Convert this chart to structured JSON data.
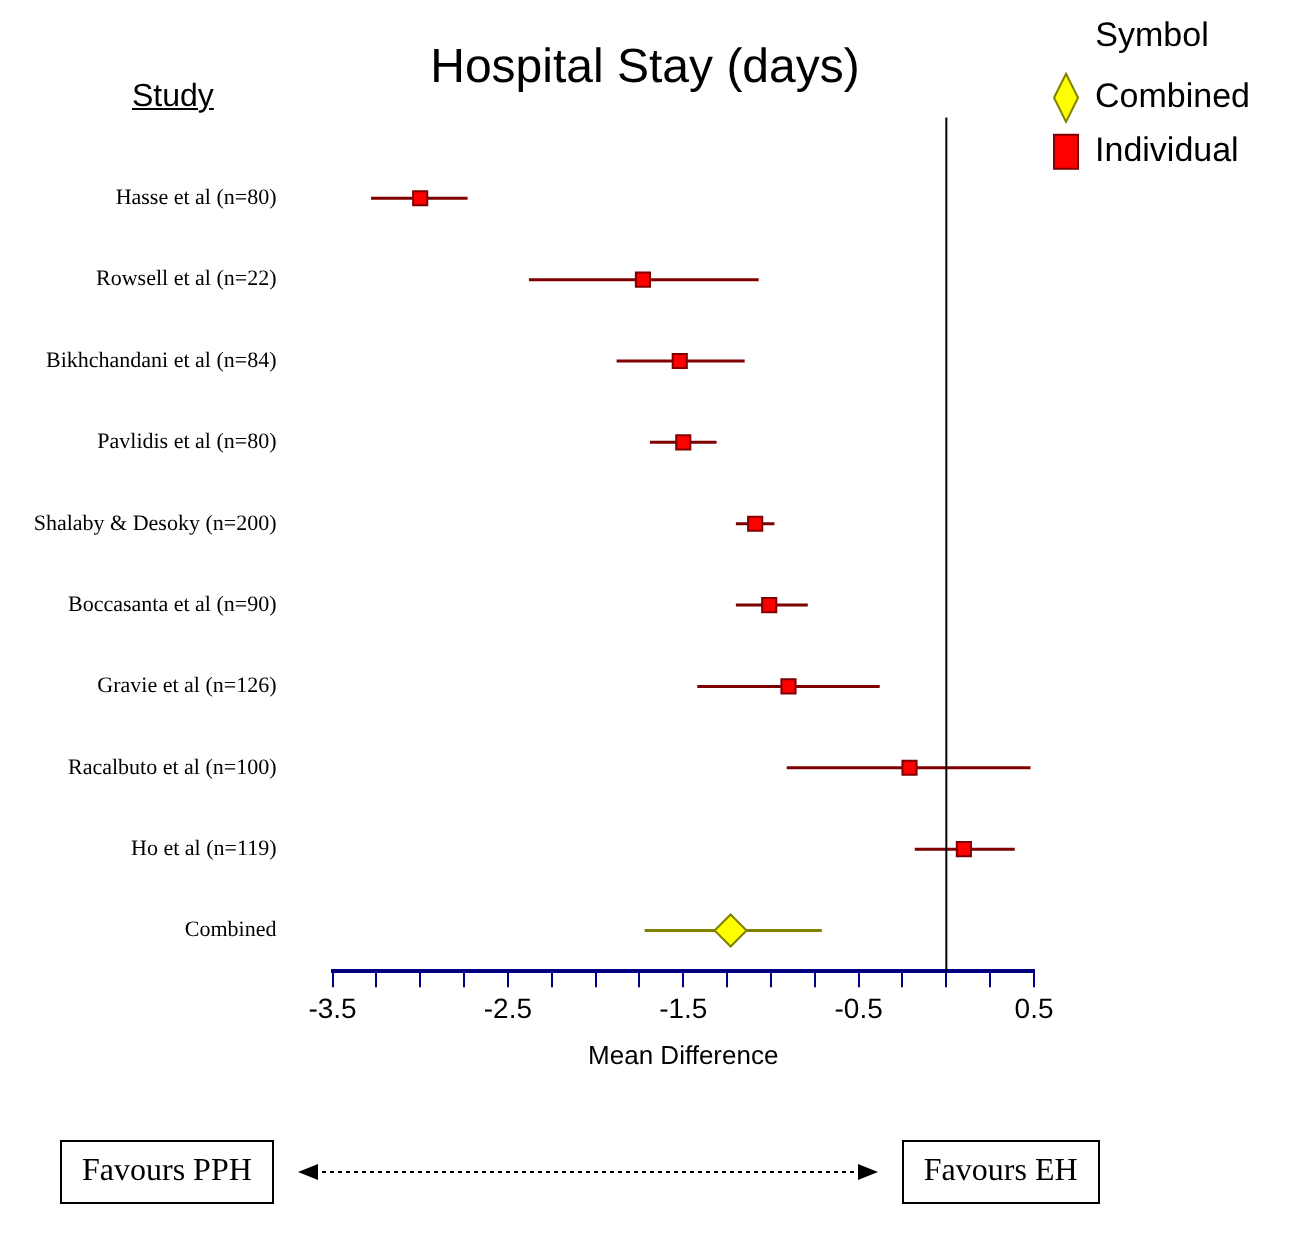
{
  "chart_data": {
    "type": "scatter",
    "orientation": "horizontal",
    "title": "Hospital Stay (days)",
    "xlabel": "Mean Difference",
    "legend_title": "Symbol",
    "legend": "top right",
    "grid": false,
    "categories": [
      "Hasse et al (n=80)",
      "Rowsell et al (n=22)",
      "Bikhchandani et al (n=84)",
      "Pavlidis et al (n=80)",
      "Shalaby & Desoky (n=200)",
      "Boccasanta et al (n=90)",
      "Gravie et al (n=126)",
      "Racalbuto et al (n=100)",
      "Ho et al (n=119)",
      "Combined"
    ],
    "series": [
      {
        "name": "Combined",
        "color": "#ffff00",
        "marker": "diamond",
        "values": [
          null,
          null,
          null,
          null,
          null,
          null,
          null,
          null,
          null,
          -1.23
        ],
        "errors": [
          null,
          null,
          null,
          null,
          null,
          null,
          null,
          null,
          null,
          [
            -1.72,
            -0.71
          ]
        ]
      },
      {
        "name": "Individual",
        "color": "#ff0000",
        "marker": "square",
        "values": [
          -3.0,
          -1.73,
          -1.52,
          -1.5,
          -1.09,
          -1.01,
          -0.9,
          -0.21,
          0.1,
          null
        ],
        "errors": [
          [
            -3.28,
            -2.73
          ],
          [
            -2.38,
            -1.07
          ],
          [
            -1.88,
            -1.15
          ],
          [
            -1.69,
            -1.31
          ],
          [
            -1.2,
            -0.98
          ],
          [
            -1.2,
            -0.79
          ],
          [
            -1.42,
            -0.38
          ],
          [
            -0.91,
            0.48
          ],
          [
            -0.18,
            0.39
          ],
          null
        ]
      }
    ],
    "xlim": [
      -3.5,
      0.5
    ],
    "xticks": [
      -3.5,
      {
        "value": -3.25,
        "label": null
      },
      {
        "value": -3,
        "label": null
      },
      {
        "value": -2.75,
        "label": null
      },
      -2.5,
      {
        "value": -2.25,
        "label": null
      },
      {
        "value": -2,
        "label": null
      },
      {
        "value": -1.75,
        "label": null
      },
      -1.5,
      {
        "value": -1.25,
        "label": null
      },
      {
        "value": -1,
        "label": null
      },
      {
        "value": -0.75,
        "label": null
      },
      -0.5,
      {
        "value": -0.25,
        "label": null
      },
      {
        "value": 0,
        "label": null
      },
      {
        "value": 0.25,
        "label": null
      },
      0.5
    ],
    "ref_lines": [
      {
        "axis": "x",
        "value": 0
      }
    ],
    "annotations": [
      "Study",
      "Favours PPH",
      "Favours EH"
    ]
  }
}
